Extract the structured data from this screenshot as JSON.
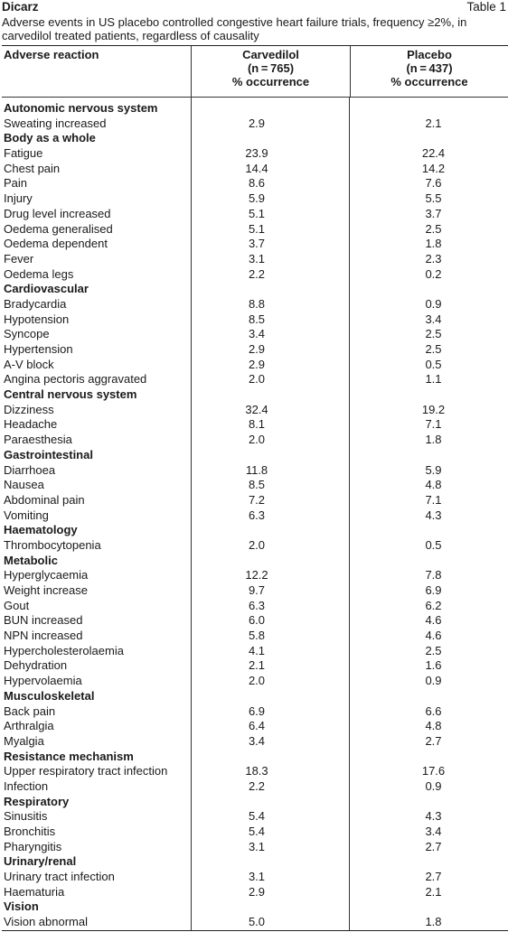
{
  "brand": "Dicarz",
  "table_number": "Table 1",
  "caption": "Adverse events in US placebo controlled congestive heart failure trials, frequency ≥2%, in carvedilol treated patients, regardless of causality",
  "headers": {
    "reaction": "Adverse reaction",
    "carvedilol": [
      "Carvedilol",
      "(n = 765)",
      "% occurrence"
    ],
    "placebo": [
      "Placebo",
      "(n = 437)",
      "% occurrence"
    ]
  },
  "sections": [
    {
      "name": "Autonomic nervous system",
      "rows": [
        {
          "reaction": "Sweating increased",
          "carvedilol": "2.9",
          "placebo": "2.1"
        }
      ]
    },
    {
      "name": "Body as a whole",
      "rows": [
        {
          "reaction": "Fatigue",
          "carvedilol": "23.9",
          "placebo": "22.4"
        },
        {
          "reaction": "Chest pain",
          "carvedilol": "14.4",
          "placebo": "14.2"
        },
        {
          "reaction": "Pain",
          "carvedilol": "8.6",
          "placebo": "7.6"
        },
        {
          "reaction": "Injury",
          "carvedilol": "5.9",
          "placebo": "5.5"
        },
        {
          "reaction": "Drug level increased",
          "carvedilol": "5.1",
          "placebo": "3.7"
        },
        {
          "reaction": "Oedema generalised",
          "carvedilol": "5.1",
          "placebo": "2.5"
        },
        {
          "reaction": "Oedema dependent",
          "carvedilol": "3.7",
          "placebo": "1.8"
        },
        {
          "reaction": "Fever",
          "carvedilol": "3.1",
          "placebo": "2.3"
        },
        {
          "reaction": "Oedema legs",
          "carvedilol": "2.2",
          "placebo": "0.2"
        }
      ]
    },
    {
      "name": "Cardiovascular",
      "rows": [
        {
          "reaction": "Bradycardia",
          "carvedilol": "8.8",
          "placebo": "0.9"
        },
        {
          "reaction": "Hypotension",
          "carvedilol": "8.5",
          "placebo": "3.4"
        },
        {
          "reaction": "Syncope",
          "carvedilol": "3.4",
          "placebo": "2.5"
        },
        {
          "reaction": "Hypertension",
          "carvedilol": "2.9",
          "placebo": "2.5"
        },
        {
          "reaction": "A-V block",
          "carvedilol": "2.9",
          "placebo": "0.5"
        },
        {
          "reaction": "Angina pectoris aggravated",
          "carvedilol": "2.0",
          "placebo": "1.1"
        }
      ]
    },
    {
      "name": "Central nervous system",
      "rows": [
        {
          "reaction": "Dizziness",
          "carvedilol": "32.4",
          "placebo": "19.2"
        },
        {
          "reaction": "Headache",
          "carvedilol": "8.1",
          "placebo": "7.1"
        },
        {
          "reaction": "Paraesthesia",
          "carvedilol": "2.0",
          "placebo": "1.8"
        }
      ]
    },
    {
      "name": "Gastrointestinal",
      "rows": [
        {
          "reaction": "Diarrhoea",
          "carvedilol": "11.8",
          "placebo": "5.9"
        },
        {
          "reaction": "Nausea",
          "carvedilol": "8.5",
          "placebo": "4.8"
        },
        {
          "reaction": "Abdominal pain",
          "carvedilol": "7.2",
          "placebo": "7.1"
        },
        {
          "reaction": "Vomiting",
          "carvedilol": "6.3",
          "placebo": "4.3"
        }
      ]
    },
    {
      "name": "Haematology",
      "rows": [
        {
          "reaction": "Thrombocytopenia",
          "carvedilol": "2.0",
          "placebo": "0.5"
        }
      ]
    },
    {
      "name": "Metabolic",
      "rows": [
        {
          "reaction": "Hyperglycaemia",
          "carvedilol": "12.2",
          "placebo": "7.8"
        },
        {
          "reaction": "Weight increase",
          "carvedilol": "9.7",
          "placebo": "6.9"
        },
        {
          "reaction": "Gout",
          "carvedilol": "6.3",
          "placebo": "6.2"
        },
        {
          "reaction": "BUN increased",
          "carvedilol": "6.0",
          "placebo": "4.6"
        },
        {
          "reaction": "NPN increased",
          "carvedilol": "5.8",
          "placebo": "4.6"
        },
        {
          "reaction": "Hypercholesterolaemia",
          "carvedilol": "4.1",
          "placebo": "2.5"
        },
        {
          "reaction": "Dehydration",
          "carvedilol": "2.1",
          "placebo": "1.6"
        },
        {
          "reaction": "Hypervolaemia",
          "carvedilol": "2.0",
          "placebo": "0.9"
        }
      ]
    },
    {
      "name": "Musculoskeletal",
      "rows": [
        {
          "reaction": "Back pain",
          "carvedilol": "6.9",
          "placebo": "6.6"
        },
        {
          "reaction": "Arthralgia",
          "carvedilol": "6.4",
          "placebo": "4.8"
        },
        {
          "reaction": "Myalgia",
          "carvedilol": "3.4",
          "placebo": "2.7"
        }
      ]
    },
    {
      "name": "Resistance mechanism",
      "rows": [
        {
          "reaction": "Upper respiratory tract infection",
          "carvedilol": "18.3",
          "placebo": "17.6"
        },
        {
          "reaction": "Infection",
          "carvedilol": "2.2",
          "placebo": "0.9"
        }
      ]
    },
    {
      "name": "Respiratory",
      "rows": [
        {
          "reaction": "Sinusitis",
          "carvedilol": "5.4",
          "placebo": "4.3"
        },
        {
          "reaction": "Bronchitis",
          "carvedilol": "5.4",
          "placebo": "3.4"
        },
        {
          "reaction": "Pharyngitis",
          "carvedilol": "3.1",
          "placebo": "2.7"
        }
      ]
    },
    {
      "name": "Urinary/renal",
      "rows": [
        {
          "reaction": "Urinary tract infection",
          "carvedilol": "3.1",
          "placebo": "2.7"
        },
        {
          "reaction": "Haematuria",
          "carvedilol": "2.9",
          "placebo": "2.1"
        }
      ]
    },
    {
      "name": "Vision",
      "rows": [
        {
          "reaction": "Vision abnormal",
          "carvedilol": "5.0",
          "placebo": "1.8"
        }
      ]
    }
  ]
}
